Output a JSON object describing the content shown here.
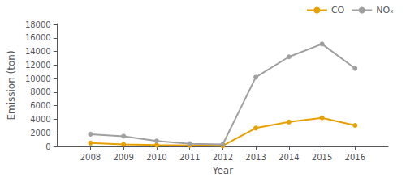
{
  "chart_data": {
    "type": "line",
    "xlabel": "Year",
    "ylabel": "Emission (ton)",
    "x": [
      2008,
      2009,
      2010,
      2011,
      2012,
      2013,
      2014,
      2015,
      2016
    ],
    "xlim": [
      2007,
      2017
    ],
    "xticks": [
      2008,
      2009,
      2010,
      2011,
      2012,
      2013,
      2014,
      2015,
      2016
    ],
    "ylim": [
      0,
      18000
    ],
    "yticks": [
      0,
      2000,
      4000,
      6000,
      8000,
      10000,
      12000,
      14000,
      16000,
      18000
    ],
    "series": [
      {
        "name": "CO",
        "color": "#E8A000",
        "marker": "circle",
        "values": [
          500,
          300,
          200,
          150,
          100,
          2700,
          3600,
          4200,
          3100
        ]
      },
      {
        "name": "NOₓ",
        "color": "#A0A0A0",
        "marker": "circle",
        "values": [
          1800,
          1500,
          800,
          400,
          300,
          10200,
          13200,
          15100,
          11500
        ]
      }
    ],
    "legend": "upper right",
    "grid": false
  }
}
